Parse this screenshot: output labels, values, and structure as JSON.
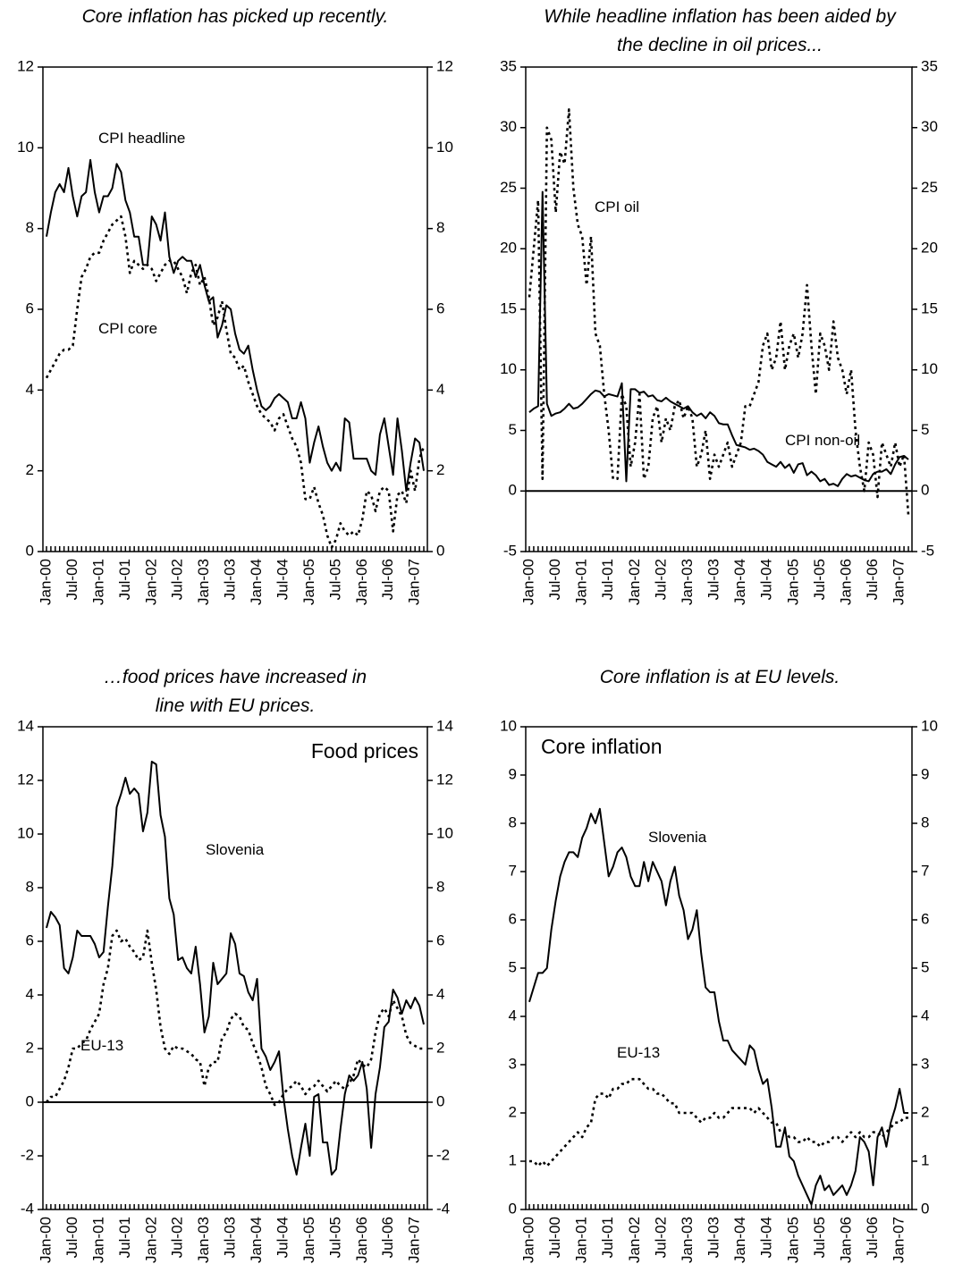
{
  "chart_data": [
    {
      "type": "line",
      "title": [
        "Core inflation has picked up recently."
      ],
      "categories": [
        "Jan-00",
        null,
        null,
        null,
        null,
        null,
        "Jul-00",
        null,
        null,
        null,
        null,
        null,
        "Jan-01",
        null,
        null,
        null,
        null,
        null,
        "Jul-01",
        null,
        null,
        null,
        null,
        null,
        "Jan-02",
        null,
        null,
        null,
        null,
        null,
        "Jul-02",
        null,
        null,
        null,
        null,
        null,
        "Jan-03",
        null,
        null,
        null,
        null,
        null,
        "Jul-03",
        null,
        null,
        null,
        null,
        null,
        "Jan-04",
        null,
        null,
        null,
        null,
        null,
        "Jul-04",
        null,
        null,
        null,
        null,
        null,
        "Jan-05",
        null,
        null,
        null,
        null,
        null,
        "Jul-05",
        null,
        null,
        null,
        null,
        null,
        "Jan-06",
        null,
        null,
        null,
        null,
        null,
        "Jul-06",
        null,
        null,
        null,
        null,
        null,
        "Jan-07",
        null,
        null
      ],
      "ylim": [
        0,
        12
      ],
      "yticks": [
        0,
        2,
        4,
        6,
        8,
        10,
        12
      ],
      "series": [
        {
          "name": "CPI headline",
          "color": "#000000",
          "style": "solid",
          "values": [
            7.8,
            8.4,
            8.9,
            9.1,
            8.9,
            9.5,
            8.8,
            8.3,
            8.8,
            8.9,
            9.7,
            8.9,
            8.4,
            8.8,
            8.8,
            9.0,
            9.6,
            9.4,
            8.7,
            8.4,
            7.8,
            7.8,
            7.1,
            7.1,
            8.3,
            8.1,
            7.7,
            8.4,
            7.3,
            6.9,
            7.2,
            7.3,
            7.2,
            7.2,
            6.8,
            7.1,
            6.6,
            6.2,
            6.3,
            5.3,
            5.6,
            6.1,
            6.0,
            5.4,
            5.0,
            4.9,
            5.1,
            4.5,
            4.0,
            3.6,
            3.5,
            3.6,
            3.8,
            3.9,
            3.8,
            3.7,
            3.3,
            3.3,
            3.7,
            3.3,
            2.2,
            2.7,
            3.1,
            2.6,
            2.2,
            2.0,
            2.2,
            2.0,
            3.3,
            3.2,
            2.3,
            2.3,
            2.3,
            2.3,
            2.0,
            1.9,
            2.9,
            3.3,
            2.6,
            1.9,
            3.3,
            2.5,
            1.5,
            2.2,
            2.8,
            2.7,
            2.0
          ]
        },
        {
          "name": "CPI core",
          "color": "#000000",
          "style": "dotted",
          "values": [
            4.3,
            4.5,
            4.7,
            4.9,
            5.0,
            5.0,
            5.1,
            6.0,
            6.8,
            7.0,
            7.3,
            7.4,
            7.4,
            7.7,
            7.9,
            8.1,
            8.2,
            8.3,
            7.8,
            6.9,
            7.2,
            7.1,
            7.0,
            7.1,
            7.0,
            6.7,
            6.9,
            7.1,
            7.2,
            7.2,
            7.0,
            6.8,
            6.4,
            6.9,
            7.1,
            6.6,
            6.8,
            6.3,
            5.6,
            5.8,
            6.2,
            5.5,
            4.9,
            4.8,
            4.5,
            4.6,
            4.2,
            3.9,
            3.6,
            3.4,
            3.3,
            3.2,
            3.0,
            3.3,
            3.4,
            3.1,
            2.8,
            2.6,
            2.2,
            1.3,
            1.3,
            1.6,
            1.2,
            0.9,
            0.4,
            0.1,
            0.3,
            0.7,
            0.5,
            0.4,
            0.5,
            0.4,
            0.8,
            1.5,
            1.4,
            1.0,
            1.5,
            1.6,
            1.5,
            0.5,
            1.4,
            1.5,
            1.2,
            2.0,
            1.5,
            2.3,
            2.6
          ]
        }
      ]
    },
    {
      "type": "line",
      "title": [
        "While headline inflation has been aided by",
        "the decline in oil prices..."
      ],
      "categories": [
        "Jan-00",
        null,
        null,
        null,
        null,
        null,
        "Jul-00",
        null,
        null,
        null,
        null,
        null,
        "Jan-01",
        null,
        null,
        null,
        null,
        null,
        "Jul-01",
        null,
        null,
        null,
        null,
        null,
        "Jan-02",
        null,
        null,
        null,
        null,
        null,
        "Jul-02",
        null,
        null,
        null,
        null,
        null,
        "Jan-03",
        null,
        null,
        null,
        null,
        null,
        "Jul-03",
        null,
        null,
        null,
        null,
        null,
        "Jan-04",
        null,
        null,
        null,
        null,
        null,
        "Jul-04",
        null,
        null,
        null,
        null,
        null,
        "Jan-05",
        null,
        null,
        null,
        null,
        null,
        "Jul-05",
        null,
        null,
        null,
        null,
        null,
        "Jan-06",
        null,
        null,
        null,
        null,
        null,
        "Jul-06",
        null,
        null,
        null,
        null,
        null,
        "Jan-07",
        null,
        null
      ],
      "ylim": [
        -5,
        35
      ],
      "yticks": [
        -5,
        0,
        5,
        10,
        15,
        20,
        25,
        30,
        35
      ],
      "series": [
        {
          "name": "CPI oil",
          "color": "#000000",
          "style": "dotted",
          "values": [
            16,
            20,
            24,
            1,
            30,
            29,
            23,
            28,
            27,
            31.5,
            25,
            22,
            21,
            17,
            21,
            13,
            12,
            8,
            5,
            1,
            1,
            8,
            7,
            2,
            4,
            8,
            1,
            2,
            6,
            7,
            4,
            6,
            5,
            7,
            7.5,
            6,
            7,
            6,
            2,
            3,
            5,
            1,
            3,
            2,
            3,
            4,
            2,
            3,
            4,
            7,
            7,
            8,
            9,
            12,
            13,
            10,
            11,
            14,
            10,
            12,
            13,
            11,
            13,
            17,
            12,
            8,
            13,
            12,
            10,
            14,
            11,
            10,
            8,
            10,
            5,
            2,
            0,
            4,
            3,
            -0.5,
            4,
            3,
            2,
            4,
            2,
            3,
            -2
          ]
        },
        {
          "name": "CPI non-oil",
          "color": "#000000",
          "style": "solid",
          "values": [
            6.5,
            6.8,
            7.0,
            24.7,
            7.2,
            6.2,
            6.4,
            6.5,
            6.8,
            7.2,
            6.8,
            6.9,
            7.2,
            7.6,
            8.0,
            8.3,
            8.2,
            7.8,
            8.0,
            7.9,
            7.8,
            8.9,
            0.8,
            8.4,
            8.4,
            8.1,
            8.2,
            7.8,
            7.9,
            7.5,
            7.4,
            7.7,
            7.4,
            7.2,
            7.0,
            6.8,
            7.0,
            6.5,
            6.2,
            6.4,
            6.0,
            6.5,
            6.2,
            5.6,
            5.5,
            5.5,
            4.6,
            3.8,
            3.7,
            3.6,
            3.4,
            3.5,
            3.3,
            3.0,
            2.4,
            2.2,
            2.0,
            2.4,
            1.9,
            2.2,
            1.5,
            2.2,
            2.3,
            1.3,
            1.6,
            1.3,
            0.8,
            1.0,
            0.5,
            0.6,
            0.4,
            1.0,
            1.4,
            1.2,
            1.3,
            1.1,
            0.9,
            0.8,
            1.4,
            1.6,
            1.6,
            1.8,
            1.4,
            2.2,
            2.8,
            2.9,
            2.6
          ]
        }
      ]
    },
    {
      "type": "line",
      "title": [
        "…food prices have increased in",
        "line with EU prices."
      ],
      "label": "Food prices",
      "categories": [
        "Jan-00",
        null,
        null,
        null,
        null,
        null,
        "Jul-00",
        null,
        null,
        null,
        null,
        null,
        "Jan-01",
        null,
        null,
        null,
        null,
        null,
        "Jul-01",
        null,
        null,
        null,
        null,
        null,
        "Jan-02",
        null,
        null,
        null,
        null,
        null,
        "Jul-02",
        null,
        null,
        null,
        null,
        null,
        "Jan-03",
        null,
        null,
        null,
        null,
        null,
        "Jul-03",
        null,
        null,
        null,
        null,
        null,
        "Jan-04",
        null,
        null,
        null,
        null,
        null,
        "Jul-04",
        null,
        null,
        null,
        null,
        null,
        "Jan-05",
        null,
        null,
        null,
        null,
        null,
        "Jul-05",
        null,
        null,
        null,
        null,
        null,
        "Jan-06",
        null,
        null,
        null,
        null,
        null,
        "Jul-06",
        null,
        null,
        null,
        null,
        null,
        "Jan-07",
        null,
        null
      ],
      "ylim": [
        -4,
        14
      ],
      "yticks": [
        -4,
        -2,
        0,
        2,
        4,
        6,
        8,
        10,
        12,
        14
      ],
      "series": [
        {
          "name": "Slovenia",
          "color": "#000000",
          "style": "solid",
          "values": [
            6.5,
            7.1,
            6.9,
            6.6,
            5.0,
            4.8,
            5.4,
            6.4,
            6.2,
            6.2,
            6.2,
            5.9,
            5.4,
            5.6,
            7.3,
            8.8,
            11.0,
            11.5,
            12.1,
            11.5,
            11.7,
            11.5,
            10.1,
            10.8,
            12.7,
            12.6,
            10.7,
            9.9,
            7.6,
            7.0,
            5.3,
            5.4,
            5.0,
            4.8,
            5.8,
            4.4,
            2.6,
            3.2,
            5.2,
            4.4,
            4.6,
            4.8,
            6.3,
            5.9,
            4.8,
            4.7,
            4.1,
            3.8,
            4.6,
            2.0,
            1.7,
            1.2,
            1.5,
            1.9,
            0.2,
            -1.0,
            -2.0,
            -2.7,
            -1.7,
            -0.8,
            -2.0,
            0.2,
            0.3,
            -1.5,
            -1.5,
            -2.7,
            -2.5,
            -1.0,
            0.3,
            1.0,
            0.8,
            1.0,
            1.5,
            0.5,
            -1.7,
            0.3,
            1.3,
            2.8,
            3.0,
            4.2,
            3.9,
            3.3,
            3.8,
            3.5,
            3.9,
            3.6,
            2.9
          ]
        },
        {
          "name": "EU-13",
          "color": "#000000",
          "style": "dotted",
          "values": [
            0.0,
            0.2,
            0.2,
            0.5,
            0.8,
            1.3,
            2.0,
            2.0,
            2.2,
            2.3,
            2.7,
            3.0,
            3.3,
            4.4,
            5.0,
            6.2,
            6.4,
            6.0,
            6.1,
            5.8,
            5.6,
            5.3,
            5.4,
            6.4,
            5.2,
            4.2,
            2.8,
            2.0,
            1.8,
            2.1,
            2.0,
            2.0,
            1.9,
            1.8,
            1.6,
            1.5,
            0.6,
            1.3,
            1.5,
            1.5,
            2.4,
            2.6,
            3.1,
            3.3,
            3.2,
            2.8,
            2.7,
            2.2,
            1.8,
            1.3,
            0.6,
            0.3,
            -0.1,
            0.0,
            0.3,
            0.5,
            0.6,
            0.8,
            0.6,
            0.3,
            0.5,
            0.6,
            0.8,
            0.6,
            0.4,
            0.6,
            0.8,
            0.6,
            0.5,
            0.7,
            1.0,
            1.6,
            1.4,
            1.3,
            1.6,
            2.6,
            3.3,
            3.5,
            3.2,
            3.8,
            3.5,
            3.2,
            2.5,
            2.2,
            2.1,
            2.0,
            2.0
          ]
        }
      ]
    },
    {
      "type": "line",
      "title": [
        "Core inflation is at EU levels."
      ],
      "label": "Core inflation",
      "categories": [
        "Jan-00",
        null,
        null,
        null,
        null,
        null,
        "Jul-00",
        null,
        null,
        null,
        null,
        null,
        "Jan-01",
        null,
        null,
        null,
        null,
        null,
        "Jul-01",
        null,
        null,
        null,
        null,
        null,
        "Jan-02",
        null,
        null,
        null,
        null,
        null,
        "Jul-02",
        null,
        null,
        null,
        null,
        null,
        "Jan-03",
        null,
        null,
        null,
        null,
        null,
        "Jul-03",
        null,
        null,
        null,
        null,
        null,
        "Jan-04",
        null,
        null,
        null,
        null,
        null,
        "Jul-04",
        null,
        null,
        null,
        null,
        null,
        "Jan-05",
        null,
        null,
        null,
        null,
        null,
        "Jul-05",
        null,
        null,
        null,
        null,
        null,
        "Jan-06",
        null,
        null,
        null,
        null,
        null,
        "Jul-06",
        null,
        null,
        null,
        null,
        null,
        "Jan-07",
        null,
        null
      ],
      "ylim": [
        0,
        10
      ],
      "yticks": [
        0,
        1,
        2,
        3,
        4,
        5,
        6,
        7,
        8,
        9,
        10
      ],
      "series": [
        {
          "name": "Slovenia",
          "color": "#000000",
          "style": "solid",
          "values": [
            4.3,
            4.6,
            4.9,
            4.9,
            5.0,
            5.8,
            6.4,
            6.9,
            7.2,
            7.4,
            7.4,
            7.3,
            7.7,
            7.9,
            8.2,
            8.0,
            8.3,
            7.6,
            6.9,
            7.1,
            7.4,
            7.5,
            7.3,
            6.9,
            6.7,
            6.7,
            7.2,
            6.8,
            7.2,
            7.0,
            6.8,
            6.3,
            6.8,
            7.1,
            6.5,
            6.2,
            5.6,
            5.8,
            6.2,
            5.3,
            4.6,
            4.5,
            4.5,
            3.9,
            3.5,
            3.5,
            3.3,
            3.2,
            3.1,
            3.0,
            3.4,
            3.3,
            2.9,
            2.6,
            2.7,
            2.1,
            1.3,
            1.3,
            1.7,
            1.1,
            1.0,
            0.7,
            0.5,
            0.3,
            0.1,
            0.5,
            0.7,
            0.4,
            0.5,
            0.3,
            0.4,
            0.5,
            0.3,
            0.5,
            0.8,
            1.5,
            1.4,
            1.2,
            0.5,
            1.5,
            1.7,
            1.3,
            1.8,
            2.1,
            2.5,
            2.0,
            2.0
          ]
        },
        {
          "name": "EU-13",
          "color": "#000000",
          "style": "dotted",
          "values": [
            1.0,
            1.0,
            0.9,
            1.0,
            0.9,
            1.0,
            1.1,
            1.2,
            1.3,
            1.4,
            1.5,
            1.6,
            1.5,
            1.7,
            1.8,
            2.3,
            2.4,
            2.4,
            2.3,
            2.5,
            2.5,
            2.6,
            2.6,
            2.7,
            2.7,
            2.7,
            2.6,
            2.5,
            2.5,
            2.4,
            2.4,
            2.3,
            2.2,
            2.2,
            2.0,
            2.0,
            2.0,
            2.0,
            1.9,
            1.8,
            1.9,
            1.9,
            2.0,
            1.9,
            1.9,
            2.0,
            2.1,
            2.1,
            2.1,
            2.1,
            2.1,
            2.0,
            2.1,
            2.0,
            1.9,
            1.8,
            1.8,
            1.6,
            1.6,
            1.5,
            1.5,
            1.4,
            1.4,
            1.5,
            1.4,
            1.4,
            1.3,
            1.4,
            1.4,
            1.5,
            1.5,
            1.4,
            1.5,
            1.6,
            1.5,
            1.6,
            1.5,
            1.5,
            1.6,
            1.6,
            1.5,
            1.6,
            1.7,
            1.8,
            1.8,
            1.9,
            1.9
          ]
        }
      ]
    }
  ]
}
